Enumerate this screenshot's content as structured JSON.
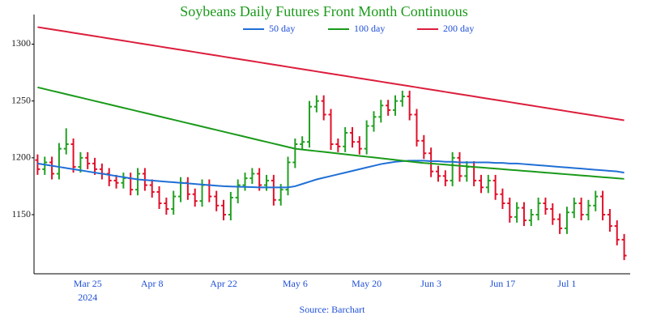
{
  "chart_data": {
    "type": "ohlc",
    "title": "Soybeans Daily Futures Front Month Continuous",
    "source": "Source: Barchart",
    "year_label": "2024",
    "categories": [
      null,
      null,
      null,
      null,
      null,
      null,
      null,
      "Mar 25",
      null,
      null,
      null,
      null,
      null,
      null,
      null,
      null,
      "Apr 8",
      null,
      null,
      null,
      null,
      null,
      null,
      null,
      null,
      null,
      "Apr 22",
      null,
      null,
      null,
      null,
      null,
      null,
      null,
      null,
      null,
      "May 6",
      null,
      null,
      null,
      null,
      null,
      null,
      null,
      null,
      null,
      "May 20",
      null,
      null,
      null,
      null,
      null,
      null,
      null,
      null,
      "Jun 3",
      null,
      null,
      null,
      null,
      null,
      null,
      null,
      null,
      null,
      "Jun 17",
      null,
      null,
      null,
      null,
      null,
      null,
      null,
      null,
      "Jul 1",
      null,
      null,
      null,
      null,
      null,
      null,
      null,
      null
    ],
    "open": [
      1198,
      1190,
      1196,
      1186,
      1208,
      1212,
      1192,
      1200,
      1195,
      1190,
      1186,
      1180,
      1178,
      1182,
      1172,
      1186,
      1176,
      1170,
      1160,
      1155,
      1166,
      1178,
      1168,
      1162,
      1176,
      1166,
      1158,
      1150,
      1165,
      1176,
      1182,
      1186,
      1176,
      1180,
      1163,
      1172,
      1196,
      1212,
      1214,
      1245,
      1250,
      1238,
      1212,
      1210,
      1222,
      1214,
      1208,
      1228,
      1236,
      1246,
      1242,
      1250,
      1254,
      1238,
      1215,
      1204,
      1188,
      1184,
      1180,
      1200,
      1184,
      1192,
      1180,
      1174,
      1180,
      1168,
      1160,
      1148,
      1156,
      1145,
      1150,
      1160,
      1155,
      1146,
      1138,
      1152,
      1160,
      1150,
      1158,
      1166,
      1150,
      1140,
      1128
    ],
    "high": [
      1203,
      1201,
      1201,
      1213,
      1226,
      1217,
      1205,
      1205,
      1200,
      1195,
      1191,
      1185,
      1187,
      1187,
      1191,
      1191,
      1181,
      1175,
      1165,
      1171,
      1183,
      1183,
      1173,
      1181,
      1181,
      1171,
      1163,
      1170,
      1181,
      1187,
      1191,
      1191,
      1185,
      1185,
      1177,
      1201,
      1217,
      1219,
      1250,
      1255,
      1255,
      1243,
      1217,
      1227,
      1227,
      1219,
      1233,
      1241,
      1251,
      1251,
      1255,
      1259,
      1259,
      1243,
      1220,
      1209,
      1193,
      1189,
      1205,
      1205,
      1197,
      1197,
      1185,
      1185,
      1185,
      1173,
      1165,
      1161,
      1161,
      1155,
      1165,
      1165,
      1160,
      1151,
      1157,
      1165,
      1165,
      1163,
      1171,
      1171,
      1155,
      1145,
      1133
    ],
    "low": [
      1185,
      1185,
      1181,
      1181,
      1203,
      1187,
      1187,
      1190,
      1185,
      1181,
      1175,
      1173,
      1173,
      1167,
      1167,
      1171,
      1165,
      1155,
      1150,
      1150,
      1161,
      1163,
      1157,
      1157,
      1161,
      1153,
      1145,
      1145,
      1160,
      1171,
      1177,
      1171,
      1171,
      1158,
      1158,
      1167,
      1191,
      1207,
      1209,
      1240,
      1233,
      1207,
      1205,
      1205,
      1209,
      1203,
      1203,
      1223,
      1231,
      1237,
      1237,
      1245,
      1233,
      1210,
      1199,
      1183,
      1179,
      1175,
      1175,
      1179,
      1179,
      1175,
      1169,
      1169,
      1163,
      1155,
      1143,
      1143,
      1140,
      1140,
      1145,
      1150,
      1141,
      1133,
      1133,
      1147,
      1145,
      1145,
      1153,
      1145,
      1135,
      1123,
      1110
    ],
    "close": [
      1190,
      1196,
      1186,
      1208,
      1212,
      1192,
      1200,
      1195,
      1190,
      1186,
      1180,
      1178,
      1182,
      1172,
      1186,
      1176,
      1170,
      1160,
      1155,
      1166,
      1178,
      1168,
      1162,
      1176,
      1166,
      1158,
      1150,
      1165,
      1176,
      1182,
      1186,
      1176,
      1180,
      1163,
      1172,
      1196,
      1212,
      1214,
      1245,
      1250,
      1238,
      1212,
      1210,
      1222,
      1214,
      1208,
      1228,
      1236,
      1246,
      1242,
      1250,
      1254,
      1238,
      1215,
      1204,
      1188,
      1184,
      1180,
      1200,
      1184,
      1192,
      1180,
      1174,
      1180,
      1168,
      1160,
      1148,
      1156,
      1145,
      1150,
      1160,
      1155,
      1146,
      1138,
      1152,
      1160,
      1150,
      1158,
      1166,
      1150,
      1140,
      1128,
      1114
    ],
    "up_color": "#22a022",
    "down_color": "#e0102a",
    "lines": [
      {
        "name": "50 day",
        "color": "#1f6fd6",
        "values": [
          1195,
          1194,
          1193,
          1192,
          1191,
          1190,
          1189,
          1188,
          1187,
          1186,
          1185,
          1184,
          1183,
          1182,
          1181,
          1180.5,
          1180,
          1179.5,
          1179,
          1178.5,
          1178,
          1177.5,
          1177,
          1176.5,
          1176,
          1175.5,
          1175,
          1174.8,
          1174.6,
          1174.4,
          1174.2,
          1174,
          1174,
          1174,
          1174,
          1174,
          1175,
          1177,
          1179,
          1181,
          1182.5,
          1184,
          1185.5,
          1187,
          1188.5,
          1190,
          1191.5,
          1193,
          1194.5,
          1195.5,
          1196.5,
          1197,
          1197.5,
          1197.5,
          1197.5,
          1197,
          1197,
          1196.5,
          1196.5,
          1196,
          1196,
          1196,
          1196,
          1196,
          1195.5,
          1195.5,
          1195,
          1195,
          1194.5,
          1194,
          1193.5,
          1193,
          1192.5,
          1192,
          1191.5,
          1191,
          1190.5,
          1190,
          1189.5,
          1189,
          1188.5,
          1188,
          1187
        ]
      },
      {
        "name": "100 day",
        "color": "#1a9a1a",
        "values": [
          1262,
          1260.5,
          1259,
          1257.5,
          1256,
          1254.5,
          1253,
          1251.5,
          1250,
          1248.5,
          1247,
          1245.5,
          1244,
          1242.5,
          1241,
          1239.5,
          1238,
          1236.5,
          1235,
          1233.5,
          1232,
          1230.5,
          1229,
          1227.5,
          1226,
          1224.5,
          1223,
          1221.5,
          1220,
          1218.5,
          1217,
          1215.5,
          1214,
          1212.5,
          1211,
          1209.5,
          1208,
          1207.3,
          1206.6,
          1205.9,
          1205.2,
          1204.5,
          1203.8,
          1203.1,
          1202.4,
          1201.7,
          1201,
          1200.3,
          1199.6,
          1198.9,
          1198.2,
          1197.5,
          1196.8,
          1196.1,
          1195.4,
          1195,
          1194.5,
          1194,
          1193.5,
          1193,
          1192.5,
          1192,
          1191.5,
          1191,
          1190.5,
          1190,
          1189.5,
          1189,
          1188.5,
          1188,
          1187.5,
          1187,
          1186.5,
          1186,
          1185.5,
          1185,
          1184.5,
          1184,
          1183.5,
          1183,
          1182.5,
          1182,
          1181.5
        ]
      },
      {
        "name": "200 day",
        "color": "#dc1e3c",
        "values": [
          1315,
          1314,
          1313,
          1312,
          1311,
          1310,
          1309,
          1308,
          1307,
          1306,
          1305,
          1304,
          1303,
          1302,
          1301,
          1300,
          1299,
          1298,
          1297,
          1296,
          1295,
          1294,
          1293,
          1292,
          1291,
          1290,
          1289,
          1288,
          1287,
          1286,
          1285,
          1284,
          1283,
          1282,
          1281,
          1280,
          1279,
          1278,
          1277,
          1276,
          1275,
          1274,
          1273,
          1272,
          1271,
          1270,
          1269,
          1268,
          1267,
          1266,
          1265,
          1264,
          1263,
          1262,
          1261,
          1260,
          1259,
          1258,
          1257,
          1256,
          1255,
          1254,
          1253,
          1252,
          1251,
          1250,
          1249,
          1248,
          1247,
          1246,
          1245,
          1244,
          1243,
          1242,
          1241,
          1240,
          1239,
          1238,
          1237,
          1236,
          1235,
          1234,
          1233
        ]
      }
    ],
    "ylim": [
      1098,
      1326
    ],
    "yticks": [
      1150,
      1200,
      1250,
      1300
    ]
  }
}
